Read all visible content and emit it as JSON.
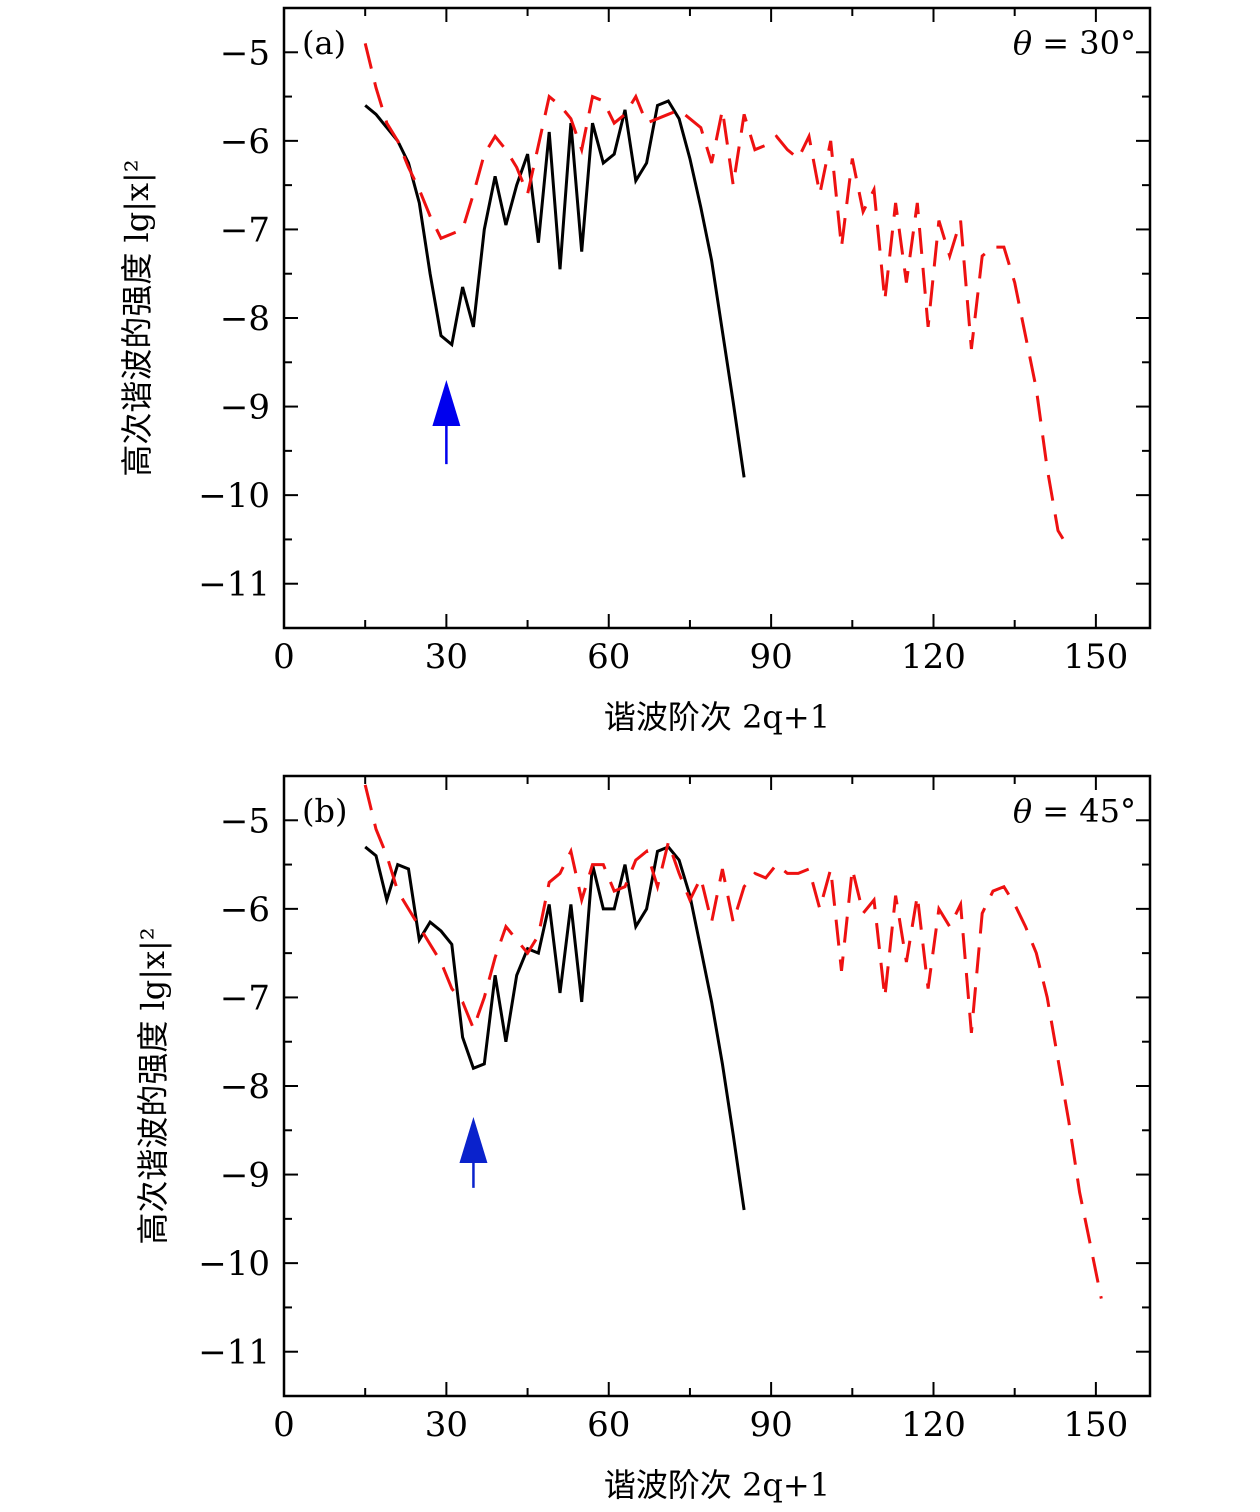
{
  "chart_data": [
    {
      "type": "line",
      "panel_label": "(a)",
      "annotation": {
        "symbol": "θ",
        "equals": " = ",
        "value": "30°"
      },
      "xlabel": "谐波阶次 2q+1",
      "ylabel": "高次谐波的强度 lg|x|²",
      "xlim": [
        0,
        160
      ],
      "ylim": [
        -11.5,
        -4.5
      ],
      "xticks": [
        0,
        30,
        60,
        90,
        120,
        150
      ],
      "yticks": [
        -5,
        -6,
        -7,
        -8,
        -9,
        -10,
        -11
      ],
      "arrow": {
        "x": 30,
        "y_tip": -8.7,
        "y_tail": -9.65,
        "color": "#0000ee"
      },
      "series": [
        {
          "style": "solid",
          "color": "#000000",
          "x": [
            15,
            17,
            19,
            21,
            23,
            25,
            27,
            29,
            31,
            33,
            35,
            37,
            39,
            41,
            43,
            45,
            47,
            49,
            51,
            53,
            55,
            57,
            59,
            61,
            63,
            65,
            67,
            69,
            71,
            73,
            75,
            77,
            79,
            81,
            83,
            85
          ],
          "y": [
            -5.6,
            -5.7,
            -5.85,
            -6.0,
            -6.25,
            -6.7,
            -7.5,
            -8.2,
            -8.3,
            -7.65,
            -8.1,
            -7.0,
            -6.4,
            -6.95,
            -6.5,
            -6.15,
            -7.15,
            -5.9,
            -7.45,
            -5.8,
            -7.25,
            -5.8,
            -6.25,
            -6.15,
            -5.65,
            -6.45,
            -6.25,
            -5.6,
            -5.55,
            -5.75,
            -6.2,
            -6.75,
            -7.35,
            -8.15,
            -8.95,
            -9.8
          ]
        },
        {
          "style": "dashed",
          "color": "#ee1111",
          "x": [
            15,
            17,
            19,
            21,
            23,
            25,
            27,
            29,
            31,
            33,
            35,
            37,
            39,
            41,
            43,
            45,
            47,
            49,
            51,
            53,
            55,
            57,
            59,
            61,
            63,
            65,
            67,
            69,
            71,
            73,
            75,
            77,
            79,
            81,
            83,
            85,
            87,
            89,
            91,
            93,
            95,
            97,
            99,
            101,
            103,
            105,
            107,
            109,
            111,
            113,
            115,
            117,
            119,
            121,
            123,
            125,
            127,
            129,
            131,
            133,
            135,
            137,
            139,
            141,
            143,
            145
          ],
          "y": [
            -4.9,
            -5.4,
            -5.8,
            -6.0,
            -6.3,
            -6.55,
            -6.85,
            -7.1,
            -7.05,
            -7.0,
            -6.6,
            -6.15,
            -5.95,
            -6.1,
            -6.3,
            -6.6,
            -6.05,
            -5.5,
            -5.6,
            -5.75,
            -6.1,
            -5.5,
            -5.55,
            -5.8,
            -5.7,
            -5.5,
            -5.8,
            -5.75,
            -5.7,
            -5.65,
            -5.75,
            -5.85,
            -6.25,
            -5.65,
            -6.5,
            -5.7,
            -6.1,
            -6.05,
            -5.95,
            -6.1,
            -6.2,
            -5.95,
            -6.6,
            -6.0,
            -7.2,
            -6.2,
            -6.8,
            -6.55,
            -7.8,
            -6.7,
            -7.6,
            -6.7,
            -8.1,
            -6.9,
            -7.3,
            -6.9,
            -8.35,
            -7.3,
            -7.2,
            -7.2,
            -7.6,
            -8.2,
            -8.8,
            -9.7,
            -10.4,
            -10.6
          ]
        }
      ]
    },
    {
      "type": "line",
      "panel_label": "(b)",
      "annotation": {
        "symbol": "θ",
        "equals": " = ",
        "value": "45°"
      },
      "xlabel": "谐波阶次 2q+1",
      "ylabel": "高次谐波的强度 lg|x|²",
      "xlim": [
        0,
        160
      ],
      "ylim": [
        -11.5,
        -4.5
      ],
      "xticks": [
        0,
        30,
        60,
        90,
        120,
        150
      ],
      "yticks": [
        -5,
        -6,
        -7,
        -8,
        -9,
        -10,
        -11
      ],
      "arrow": {
        "x": 35,
        "y_tip": -8.35,
        "y_tail": -9.15,
        "color": "#0a22cc"
      },
      "series": [
        {
          "style": "solid",
          "color": "#000000",
          "x": [
            15,
            17,
            19,
            21,
            23,
            25,
            27,
            29,
            31,
            33,
            35,
            37,
            39,
            41,
            43,
            45,
            47,
            49,
            51,
            53,
            55,
            57,
            59,
            61,
            63,
            65,
            67,
            69,
            71,
            73,
            75,
            77,
            79,
            81,
            83,
            85
          ],
          "y": [
            -5.3,
            -5.4,
            -5.9,
            -5.5,
            -5.55,
            -6.35,
            -6.15,
            -6.25,
            -6.4,
            -7.45,
            -7.8,
            -7.75,
            -6.75,
            -7.5,
            -6.75,
            -6.45,
            -6.5,
            -5.95,
            -6.95,
            -5.95,
            -7.05,
            -5.5,
            -6.0,
            -6.0,
            -5.5,
            -6.2,
            -6.0,
            -5.35,
            -5.3,
            -5.45,
            -5.85,
            -6.45,
            -7.05,
            -7.75,
            -8.55,
            -9.4
          ]
        },
        {
          "style": "dashed",
          "color": "#ee1111",
          "x": [
            15,
            17,
            19,
            21,
            23,
            25,
            27,
            29,
            31,
            33,
            35,
            37,
            39,
            41,
            43,
            45,
            47,
            49,
            51,
            53,
            55,
            57,
            59,
            61,
            63,
            65,
            67,
            69,
            71,
            73,
            75,
            77,
            79,
            81,
            83,
            85,
            87,
            89,
            91,
            93,
            95,
            97,
            99,
            101,
            103,
            105,
            107,
            109,
            111,
            113,
            115,
            117,
            119,
            121,
            123,
            125,
            127,
            129,
            131,
            133,
            135,
            137,
            139,
            141,
            143,
            145,
            147,
            149,
            151
          ],
          "y": [
            -4.6,
            -5.1,
            -5.4,
            -5.8,
            -6.0,
            -6.2,
            -6.4,
            -6.6,
            -6.9,
            -7.05,
            -7.35,
            -7.0,
            -6.55,
            -6.2,
            -6.35,
            -6.5,
            -6.3,
            -5.7,
            -5.6,
            -5.35,
            -5.9,
            -5.5,
            -5.5,
            -5.8,
            -5.75,
            -5.45,
            -5.35,
            -5.75,
            -5.25,
            -5.6,
            -5.9,
            -5.65,
            -6.15,
            -5.55,
            -6.15,
            -5.75,
            -5.6,
            -5.65,
            -5.5,
            -5.6,
            -5.6,
            -5.55,
            -6.0,
            -5.55,
            -6.7,
            -5.55,
            -6.05,
            -5.9,
            -7.0,
            -5.85,
            -6.6,
            -5.85,
            -6.9,
            -6.0,
            -6.2,
            -5.95,
            -7.4,
            -6.05,
            -5.8,
            -5.75,
            -5.95,
            -6.2,
            -6.5,
            -7.0,
            -7.7,
            -8.4,
            -9.2,
            -9.8,
            -10.4
          ]
        }
      ]
    }
  ]
}
